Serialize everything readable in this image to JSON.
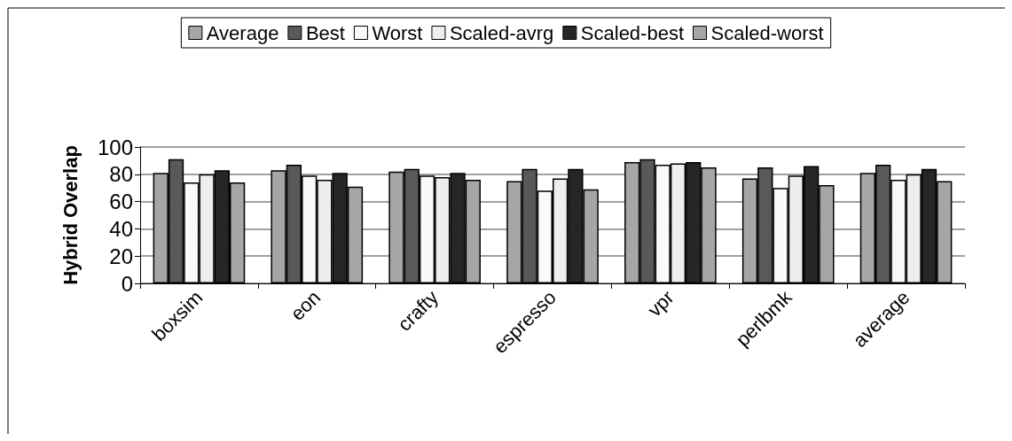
{
  "chart_data": {
    "type": "bar",
    "ylabel": "Hybrid Overlap",
    "categories": [
      "boxsim",
      "eon",
      "crafty",
      "espresso",
      "vpr",
      "perlbmk",
      "average"
    ],
    "series": [
      {
        "name": "Average",
        "color": "#a6a6a6",
        "values": [
          81,
          83,
          82,
          75,
          89,
          77,
          81
        ]
      },
      {
        "name": "Best",
        "color": "#595959",
        "values": [
          91,
          87,
          84,
          84,
          91,
          85,
          87
        ]
      },
      {
        "name": "Worst",
        "color": "#fafafa",
        "values": [
          74,
          79,
          79,
          68,
          87,
          70,
          76
        ]
      },
      {
        "name": "Scaled-avrg",
        "color": "#eeeeee",
        "values": [
          80,
          76,
          78,
          77,
          88,
          79,
          80
        ]
      },
      {
        "name": "Scaled-best",
        "color": "#262626",
        "values": [
          83,
          81,
          81,
          84,
          89,
          86,
          84
        ]
      },
      {
        "name": "Scaled-worst",
        "color": "#a6a6a6",
        "values": [
          74,
          71,
          76,
          69,
          85,
          72,
          75
        ]
      }
    ],
    "ylim": [
      0,
      100
    ],
    "yticks": [
      0,
      20,
      40,
      60,
      80,
      100
    ],
    "grid": "y",
    "legend": "top"
  }
}
